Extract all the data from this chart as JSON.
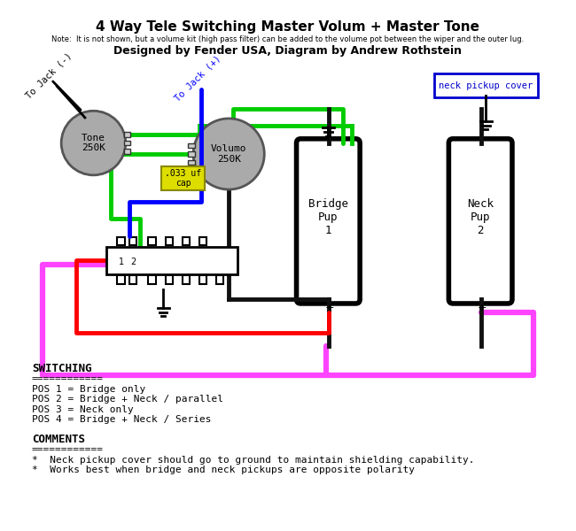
{
  "title": "4 Way Tele Switching Master Volum + Master Tone",
  "note": "Note:  It is not shown, but a volume kit (high pass filter) can be added to the volume pot between the wiper and the outer lug.",
  "designed_by": "Designed by Fender USA, Diagram by Andrew Rothstein",
  "switching_title": "SWITCHING",
  "switching_sep": "============",
  "pos1": "POS 1 = Bridge only",
  "pos2": "POS 2 = Bridge + Neck / parallel",
  "pos3": "POS 3 = Neck only",
  "pos4": "POS 4 = Bridge + Neck / Series",
  "comments_title": "COMMENTS",
  "comments_sep": "============",
  "comment1": "*  Neck pickup cover should go to ground to maintain shielding capability.",
  "comment2": "*  Works best when bridge and neck pickups are opposite polarity",
  "bg_color": "#ffffff",
  "tone_label": "Tone\n250K",
  "volume_label": "Volumo\n250K",
  "bridge_label": "Bridge\nPup\n1",
  "neck_label": "Neck\nPup\n2",
  "cap_label": ".033 uf\ncap",
  "neck_cover_label": "neck pickup cover",
  "jack_neg_label": "To Jack (-)",
  "jack_pos_label": "To Jack (+)"
}
